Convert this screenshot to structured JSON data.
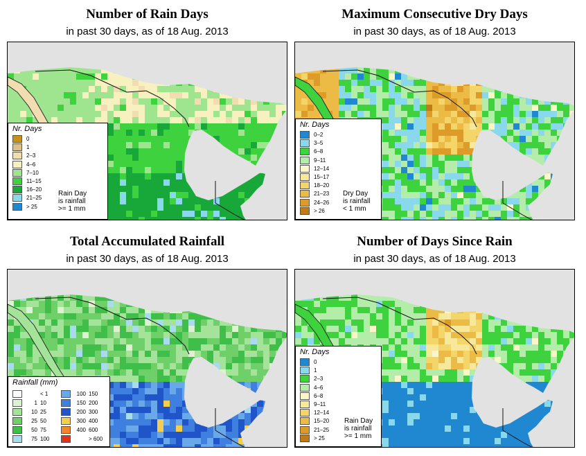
{
  "colors": {
    "land_base": "#9ad68e",
    "ocean": "#e2e2e2",
    "border": "#111111"
  },
  "panels": [
    {
      "id": "rain-days",
      "title": "Number of Rain Days",
      "subtitle": "in past 30 days, as of  18 Aug. 2013",
      "legend_title": "Nr. Days",
      "legend": [
        {
          "label": "0",
          "color": "#c8911e"
        },
        {
          "label": "1",
          "color": "#ddbf8b"
        },
        {
          "label": "2–3",
          "color": "#f2dcb2"
        },
        {
          "label": "4–6",
          "color": "#f7f1c0"
        },
        {
          "label": "7–10",
          "color": "#9fe58f"
        },
        {
          "label": "11–15",
          "color": "#3fd23f"
        },
        {
          "label": "16–20",
          "color": "#18a83a"
        },
        {
          "label": "21–25",
          "color": "#8ad8ec"
        },
        {
          "label": "> 25",
          "color": "#1f88d0"
        }
      ],
      "note": [
        "Rain Day",
        "is rainfall",
        ">= 1 mm"
      ]
    },
    {
      "id": "dry-days",
      "title": "Maximum Consecutive Dry Days",
      "subtitle": "in past 30 days, as of  18 Aug. 2013",
      "legend_title": "Nr. Days",
      "legend": [
        {
          "label": "0–2",
          "color": "#1f88d0"
        },
        {
          "label": "3–5",
          "color": "#8ad8ec"
        },
        {
          "label": "6–8",
          "color": "#3fd23f"
        },
        {
          "label": "9–11",
          "color": "#b4ecaa"
        },
        {
          "label": "12–14",
          "color": "#fbf6c8"
        },
        {
          "label": "15–17",
          "color": "#f8e89a"
        },
        {
          "label": "18–20",
          "color": "#f3d56a"
        },
        {
          "label": "21–23",
          "color": "#ecbb45"
        },
        {
          "label": "24–26",
          "color": "#dd9c2a"
        },
        {
          "label": "> 26",
          "color": "#c07a18"
        }
      ],
      "note": [
        "Dry Day",
        "is rainfall",
        "< 1 mm"
      ]
    },
    {
      "id": "total-rain",
      "title": "Total Accumulated Rainfall",
      "subtitle": "in past 30 days, as of  18 Aug. 2013",
      "legend_title": "Rainfall (mm)",
      "legend_left": [
        {
          "from": "",
          "label": "< 1",
          "color": "#ffffff"
        },
        {
          "from": "1",
          "label": "10",
          "color": "#ddf3cf"
        },
        {
          "from": "10",
          "label": "25",
          "color": "#a6e39a"
        },
        {
          "from": "25",
          "label": "50",
          "color": "#6fd06a"
        },
        {
          "from": "50",
          "label": "75",
          "color": "#3fbf4a"
        },
        {
          "from": "75",
          "label": "100",
          "color": "#a7dcef"
        }
      ],
      "legend_right": [
        {
          "from": "100",
          "label": "150",
          "color": "#6aa9e9"
        },
        {
          "from": "150",
          "label": "200",
          "color": "#3f7fe0"
        },
        {
          "from": "200",
          "label": "300",
          "color": "#1f55c8"
        },
        {
          "from": "300",
          "label": "400",
          "color": "#f4cf4f"
        },
        {
          "from": "400",
          "label": "600",
          "color": "#f1862a"
        },
        {
          "from": "",
          "label": "> 600",
          "color": "#e2321e"
        }
      ]
    },
    {
      "id": "since-rain",
      "title": "Number of Days Since Rain",
      "subtitle": "in past 30 days, as of  18 Aug. 2013",
      "legend_title": "Nr. Days",
      "legend": [
        {
          "label": "0",
          "color": "#1f88d0"
        },
        {
          "label": "1",
          "color": "#8ad8ec"
        },
        {
          "label": "2–3",
          "color": "#3fd23f"
        },
        {
          "label": "4–6",
          "color": "#b4ecaa"
        },
        {
          "label": "6–8",
          "color": "#fbf6c8"
        },
        {
          "label": "9–11",
          "color": "#f8e89a"
        },
        {
          "label": "12–14",
          "color": "#f3d56a"
        },
        {
          "label": "15–20",
          "color": "#ecbb45"
        },
        {
          "label": "21–25",
          "color": "#dd9c2a"
        },
        {
          "label": "> 25",
          "color": "#c07a18"
        }
      ],
      "note": [
        "Rain Day",
        "is rainfall",
        ">= 1 mm"
      ]
    }
  ]
}
